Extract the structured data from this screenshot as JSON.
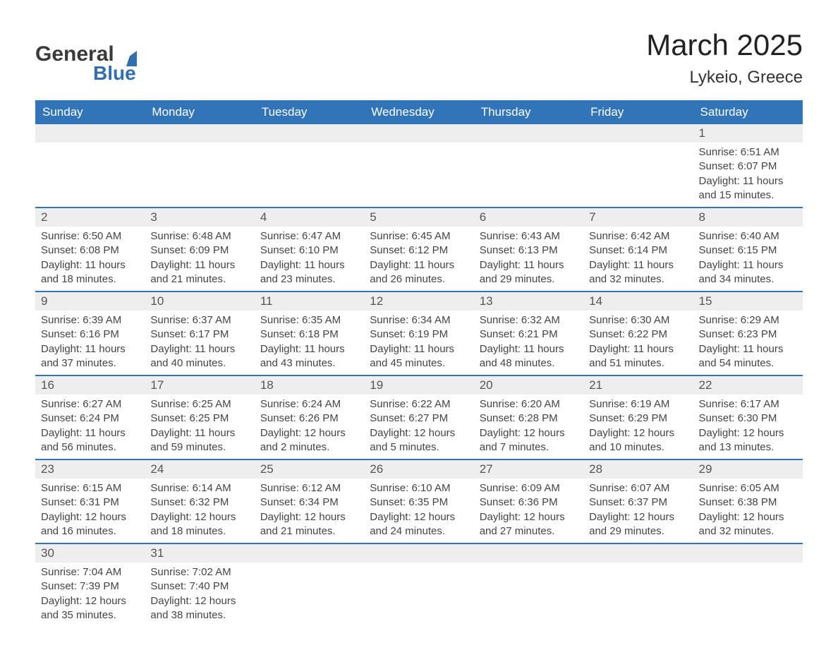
{
  "logo": {
    "text_top": "General",
    "text_bottom": "Blue"
  },
  "title": "March 2025",
  "location": "Lykeio, Greece",
  "colors": {
    "header_bg": "#3174b8",
    "header_text": "#ffffff",
    "row_divider": "#3174b8",
    "daynum_bg": "#eeeeee",
    "body_text": "#444444"
  },
  "daynames": [
    "Sunday",
    "Monday",
    "Tuesday",
    "Wednesday",
    "Thursday",
    "Friday",
    "Saturday"
  ],
  "labels": {
    "sunrise": "Sunrise:",
    "sunset": "Sunset:",
    "daylight": "Daylight:"
  },
  "weeks": [
    [
      null,
      null,
      null,
      null,
      null,
      null,
      {
        "day": "1",
        "sunrise": "6:51 AM",
        "sunset": "6:07 PM",
        "daylight": "11 hours and 15 minutes."
      }
    ],
    [
      {
        "day": "2",
        "sunrise": "6:50 AM",
        "sunset": "6:08 PM",
        "daylight": "11 hours and 18 minutes."
      },
      {
        "day": "3",
        "sunrise": "6:48 AM",
        "sunset": "6:09 PM",
        "daylight": "11 hours and 21 minutes."
      },
      {
        "day": "4",
        "sunrise": "6:47 AM",
        "sunset": "6:10 PM",
        "daylight": "11 hours and 23 minutes."
      },
      {
        "day": "5",
        "sunrise": "6:45 AM",
        "sunset": "6:12 PM",
        "daylight": "11 hours and 26 minutes."
      },
      {
        "day": "6",
        "sunrise": "6:43 AM",
        "sunset": "6:13 PM",
        "daylight": "11 hours and 29 minutes."
      },
      {
        "day": "7",
        "sunrise": "6:42 AM",
        "sunset": "6:14 PM",
        "daylight": "11 hours and 32 minutes."
      },
      {
        "day": "8",
        "sunrise": "6:40 AM",
        "sunset": "6:15 PM",
        "daylight": "11 hours and 34 minutes."
      }
    ],
    [
      {
        "day": "9",
        "sunrise": "6:39 AM",
        "sunset": "6:16 PM",
        "daylight": "11 hours and 37 minutes."
      },
      {
        "day": "10",
        "sunrise": "6:37 AM",
        "sunset": "6:17 PM",
        "daylight": "11 hours and 40 minutes."
      },
      {
        "day": "11",
        "sunrise": "6:35 AM",
        "sunset": "6:18 PM",
        "daylight": "11 hours and 43 minutes."
      },
      {
        "day": "12",
        "sunrise": "6:34 AM",
        "sunset": "6:19 PM",
        "daylight": "11 hours and 45 minutes."
      },
      {
        "day": "13",
        "sunrise": "6:32 AM",
        "sunset": "6:21 PM",
        "daylight": "11 hours and 48 minutes."
      },
      {
        "day": "14",
        "sunrise": "6:30 AM",
        "sunset": "6:22 PM",
        "daylight": "11 hours and 51 minutes."
      },
      {
        "day": "15",
        "sunrise": "6:29 AM",
        "sunset": "6:23 PM",
        "daylight": "11 hours and 54 minutes."
      }
    ],
    [
      {
        "day": "16",
        "sunrise": "6:27 AM",
        "sunset": "6:24 PM",
        "daylight": "11 hours and 56 minutes."
      },
      {
        "day": "17",
        "sunrise": "6:25 AM",
        "sunset": "6:25 PM",
        "daylight": "11 hours and 59 minutes."
      },
      {
        "day": "18",
        "sunrise": "6:24 AM",
        "sunset": "6:26 PM",
        "daylight": "12 hours and 2 minutes."
      },
      {
        "day": "19",
        "sunrise": "6:22 AM",
        "sunset": "6:27 PM",
        "daylight": "12 hours and 5 minutes."
      },
      {
        "day": "20",
        "sunrise": "6:20 AM",
        "sunset": "6:28 PM",
        "daylight": "12 hours and 7 minutes."
      },
      {
        "day": "21",
        "sunrise": "6:19 AM",
        "sunset": "6:29 PM",
        "daylight": "12 hours and 10 minutes."
      },
      {
        "day": "22",
        "sunrise": "6:17 AM",
        "sunset": "6:30 PM",
        "daylight": "12 hours and 13 minutes."
      }
    ],
    [
      {
        "day": "23",
        "sunrise": "6:15 AM",
        "sunset": "6:31 PM",
        "daylight": "12 hours and 16 minutes."
      },
      {
        "day": "24",
        "sunrise": "6:14 AM",
        "sunset": "6:32 PM",
        "daylight": "12 hours and 18 minutes."
      },
      {
        "day": "25",
        "sunrise": "6:12 AM",
        "sunset": "6:34 PM",
        "daylight": "12 hours and 21 minutes."
      },
      {
        "day": "26",
        "sunrise": "6:10 AM",
        "sunset": "6:35 PM",
        "daylight": "12 hours and 24 minutes."
      },
      {
        "day": "27",
        "sunrise": "6:09 AM",
        "sunset": "6:36 PM",
        "daylight": "12 hours and 27 minutes."
      },
      {
        "day": "28",
        "sunrise": "6:07 AM",
        "sunset": "6:37 PM",
        "daylight": "12 hours and 29 minutes."
      },
      {
        "day": "29",
        "sunrise": "6:05 AM",
        "sunset": "6:38 PM",
        "daylight": "12 hours and 32 minutes."
      }
    ],
    [
      {
        "day": "30",
        "sunrise": "7:04 AM",
        "sunset": "7:39 PM",
        "daylight": "12 hours and 35 minutes."
      },
      {
        "day": "31",
        "sunrise": "7:02 AM",
        "sunset": "7:40 PM",
        "daylight": "12 hours and 38 minutes."
      },
      null,
      null,
      null,
      null,
      null
    ]
  ]
}
